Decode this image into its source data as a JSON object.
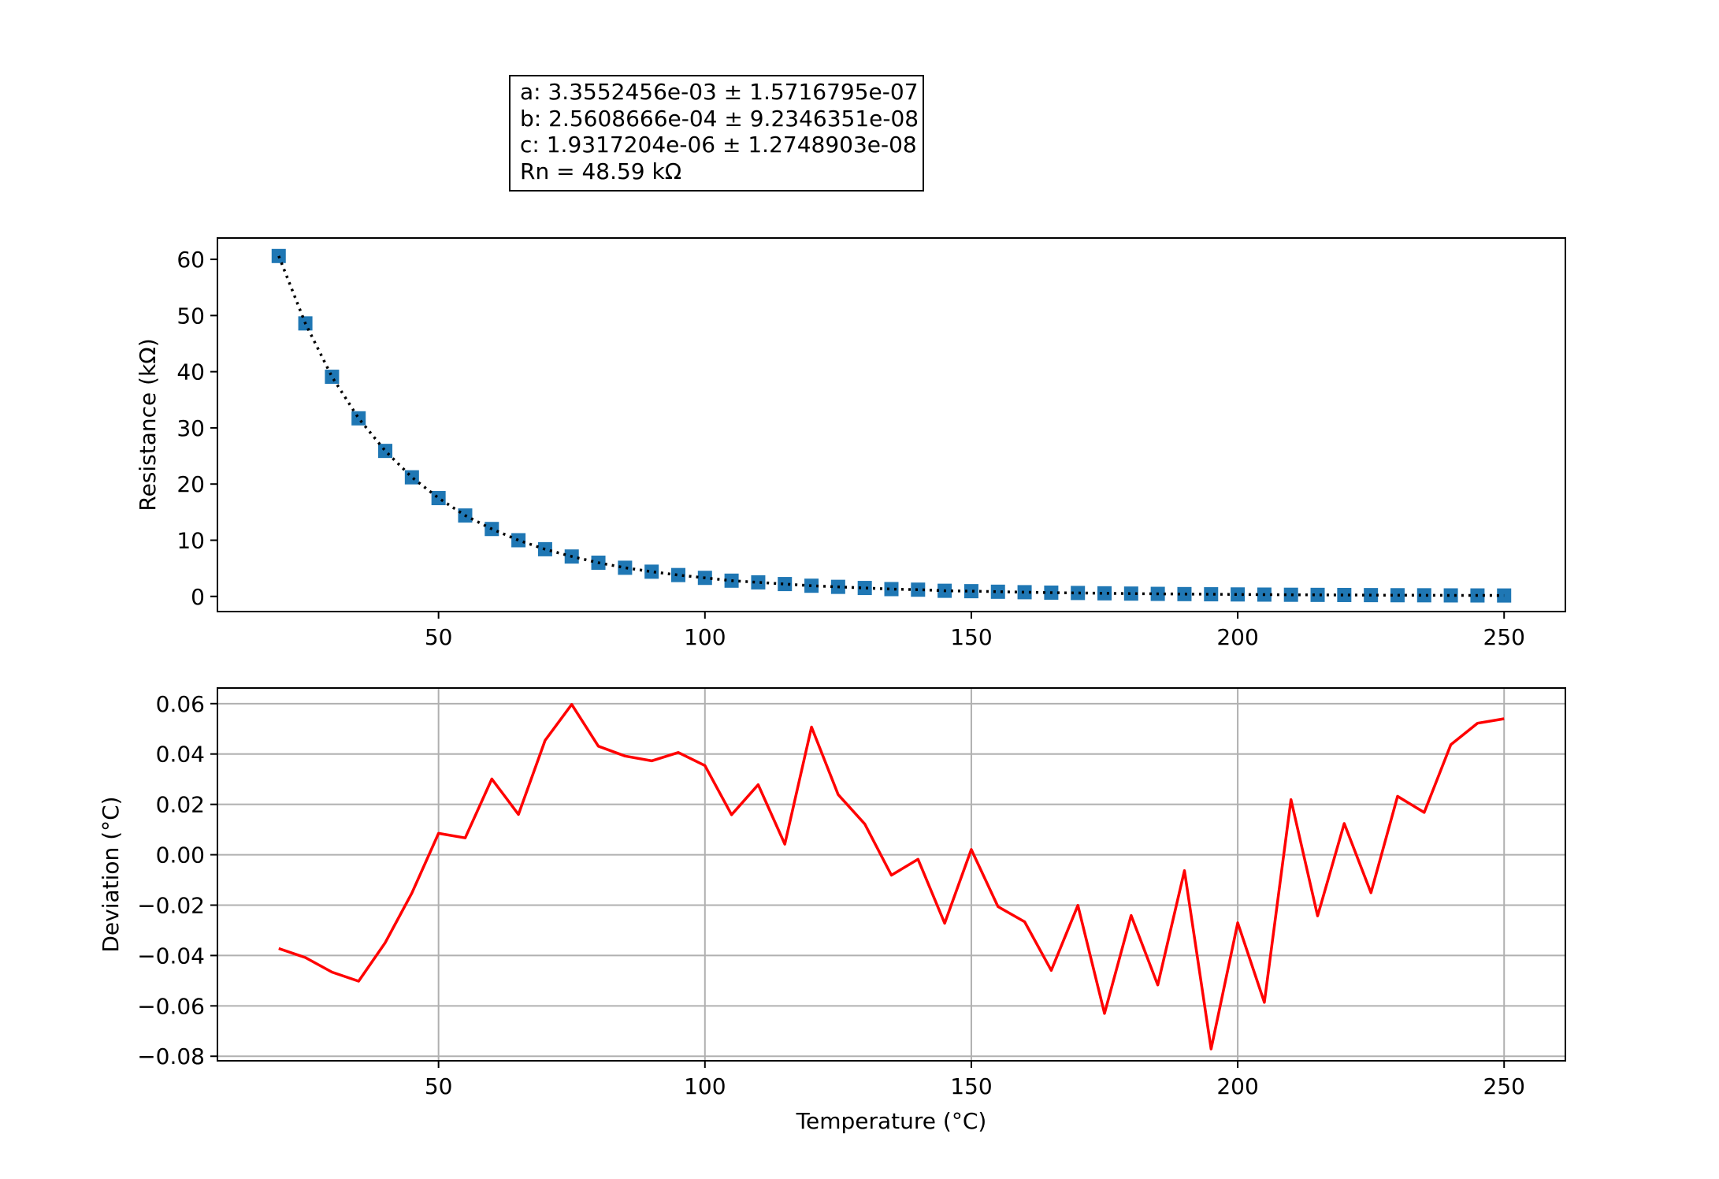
{
  "fit_box": {
    "line_a": "a: 3.3552456e-03 ± 1.5716795e-07",
    "line_b": "b: 2.5608666e-04 ± 9.2346351e-08",
    "line_c": "c: 1.9317204e-06 ± 1.2748903e-08",
    "line_rn": "Rn = 48.59 kΩ"
  },
  "chart_data": [
    {
      "type": "scatter",
      "title": "",
      "xlabel": "",
      "ylabel": "Resistance (kΩ)",
      "xlim": [
        8.5,
        261.5
      ],
      "ylim": [
        -2.7,
        63.8
      ],
      "xticks": [
        50,
        100,
        150,
        200,
        250
      ],
      "yticks": [
        0,
        10,
        20,
        30,
        40,
        50,
        60
      ],
      "grid": false,
      "marker": "square",
      "marker_color": "#1f77b4",
      "fit_line_style": "dotted",
      "fit_line_color": "#000000",
      "x": [
        20,
        25,
        30,
        35,
        40,
        45,
        50,
        55,
        60,
        65,
        70,
        75,
        80,
        85,
        90,
        95,
        100,
        105,
        110,
        115,
        120,
        125,
        130,
        135,
        140,
        145,
        150,
        155,
        160,
        165,
        170,
        175,
        180,
        185,
        190,
        195,
        200,
        205,
        210,
        215,
        220,
        225,
        230,
        235,
        240,
        245,
        250
      ],
      "y": [
        60.6,
        48.6,
        39.1,
        31.7,
        25.9,
        21.2,
        17.5,
        14.4,
        12.0,
        10.0,
        8.4,
        7.1,
        6.0,
        5.1,
        4.4,
        3.8,
        3.3,
        2.8,
        2.5,
        2.2,
        1.9,
        1.7,
        1.5,
        1.3,
        1.2,
        1.0,
        0.93,
        0.83,
        0.75,
        0.67,
        0.61,
        0.55,
        0.5,
        0.45,
        0.41,
        0.38,
        0.35,
        0.32,
        0.29,
        0.27,
        0.25,
        0.23,
        0.21,
        0.2,
        0.18,
        0.17,
        0.16
      ]
    },
    {
      "type": "line",
      "title": "",
      "xlabel": "Temperature (°C)",
      "ylabel": "Deviation (°C)",
      "xlim": [
        8.5,
        261.5
      ],
      "ylim": [
        -0.0818,
        0.0662
      ],
      "xticks": [
        50,
        100,
        150,
        200,
        250
      ],
      "yticks": [
        -0.08,
        -0.06,
        -0.04,
        -0.02,
        0.0,
        0.02,
        0.04,
        0.06
      ],
      "ytick_labels": [
        "−0.08",
        "−0.06",
        "−0.04",
        "−0.02",
        "0.00",
        "0.02",
        "0.04",
        "0.06"
      ],
      "grid": true,
      "line_color": "#ff0000",
      "x": [
        20,
        25,
        30,
        35,
        40,
        45,
        50,
        55,
        60,
        65,
        70,
        75,
        80,
        85,
        90,
        95,
        100,
        105,
        110,
        115,
        120,
        125,
        130,
        135,
        140,
        145,
        150,
        155,
        160,
        165,
        170,
        175,
        180,
        185,
        190,
        195,
        200,
        205,
        210,
        215,
        220,
        225,
        230,
        235,
        240,
        245,
        250
      ],
      "y": [
        -0.0372,
        -0.0408,
        -0.0466,
        -0.0502,
        -0.0349,
        -0.0152,
        0.0085,
        0.0067,
        0.0301,
        0.016,
        0.0454,
        0.0597,
        0.0431,
        0.0392,
        0.0373,
        0.0406,
        0.0354,
        0.0159,
        0.0278,
        0.0042,
        0.0507,
        0.0239,
        0.0122,
        -0.0081,
        -0.0018,
        -0.0272,
        0.0021,
        -0.0206,
        -0.0266,
        -0.0459,
        -0.0201,
        -0.063,
        -0.0241,
        -0.0517,
        -0.0063,
        -0.0771,
        -0.027,
        -0.0586,
        0.0219,
        -0.0243,
        0.0124,
        -0.0151,
        0.0232,
        0.0168,
        0.0437,
        0.0522,
        0.054
      ]
    }
  ]
}
